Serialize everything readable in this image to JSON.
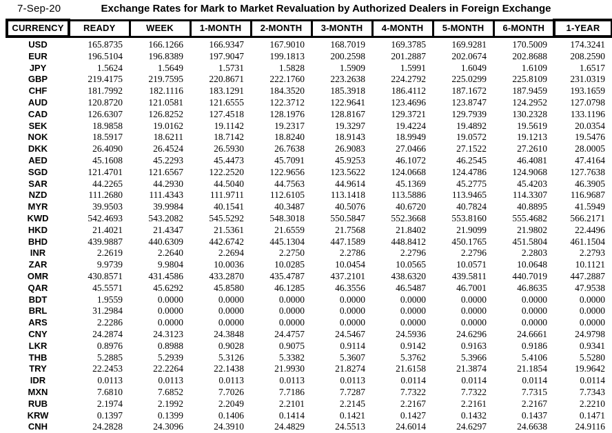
{
  "header": {
    "date": "7-Sep-20",
    "title": "Exchange Rates for Mark to Market Revaluation by Authorized Dealers in Foreign Exchange"
  },
  "colors": {
    "text": "#000000",
    "background": "#ffffff",
    "border": "#000000"
  },
  "table": {
    "columns": [
      "CURRENCY",
      "READY",
      "WEEK",
      "1-MONTH",
      "2-MONTH",
      "3-MONTH",
      "4-MONTH",
      "5-MONTH",
      "6-MONTH",
      "1-YEAR"
    ],
    "rows": [
      {
        "currency": "USD",
        "values": [
          "165.8735",
          "166.1266",
          "166.9347",
          "167.9010",
          "168.7019",
          "169.3785",
          "169.9281",
          "170.5009",
          "174.3241"
        ]
      },
      {
        "currency": "EUR",
        "values": [
          "196.5104",
          "196.8389",
          "197.9047",
          "199.1813",
          "200.2598",
          "201.2887",
          "202.0674",
          "202.8688",
          "208.2590"
        ]
      },
      {
        "currency": "JPY",
        "values": [
          "1.5624",
          "1.5649",
          "1.5731",
          "1.5828",
          "1.5909",
          "1.5991",
          "1.6049",
          "1.6109",
          "1.6517"
        ]
      },
      {
        "currency": "GBP",
        "values": [
          "219.4175",
          "219.7595",
          "220.8671",
          "222.1760",
          "223.2638",
          "224.2792",
          "225.0299",
          "225.8109",
          "231.0319"
        ]
      },
      {
        "currency": "CHF",
        "values": [
          "181.7992",
          "182.1116",
          "183.1291",
          "184.3520",
          "185.3918",
          "186.4112",
          "187.1672",
          "187.9459",
          "193.1659"
        ]
      },
      {
        "currency": "AUD",
        "values": [
          "120.8720",
          "121.0581",
          "121.6555",
          "122.3712",
          "122.9641",
          "123.4696",
          "123.8747",
          "124.2952",
          "127.0798"
        ]
      },
      {
        "currency": "CAD",
        "values": [
          "126.6307",
          "126.8252",
          "127.4518",
          "128.1976",
          "128.8167",
          "129.3721",
          "129.7939",
          "130.2328",
          "133.1196"
        ]
      },
      {
        "currency": "SEK",
        "values": [
          "18.9858",
          "19.0162",
          "19.1142",
          "19.2317",
          "19.3297",
          "19.4224",
          "19.4892",
          "19.5619",
          "20.0354"
        ]
      },
      {
        "currency": "NOK",
        "values": [
          "18.5917",
          "18.6211",
          "18.7142",
          "18.8240",
          "18.9143",
          "18.9949",
          "19.0572",
          "19.1213",
          "19.5476"
        ]
      },
      {
        "currency": "DKK",
        "values": [
          "26.4090",
          "26.4524",
          "26.5930",
          "26.7638",
          "26.9083",
          "27.0466",
          "27.1522",
          "27.2610",
          "28.0005"
        ]
      },
      {
        "currency": "AED",
        "values": [
          "45.1608",
          "45.2293",
          "45.4473",
          "45.7091",
          "45.9253",
          "46.1072",
          "46.2545",
          "46.4081",
          "47.4164"
        ]
      },
      {
        "currency": "SGD",
        "values": [
          "121.4701",
          "121.6567",
          "122.2520",
          "122.9656",
          "123.5622",
          "124.0668",
          "124.4786",
          "124.9068",
          "127.7638"
        ]
      },
      {
        "currency": "SAR",
        "values": [
          "44.2265",
          "44.2930",
          "44.5040",
          "44.7563",
          "44.9614",
          "45.1369",
          "45.2775",
          "45.4203",
          "46.3905"
        ]
      },
      {
        "currency": "NZD",
        "values": [
          "111.2680",
          "111.4343",
          "111.9711",
          "112.6105",
          "113.1418",
          "113.5886",
          "113.9465",
          "114.3307",
          "116.9687"
        ]
      },
      {
        "currency": "MYR",
        "values": [
          "39.9503",
          "39.9984",
          "40.1541",
          "40.3487",
          "40.5076",
          "40.6720",
          "40.7824",
          "40.8895",
          "41.5949"
        ]
      },
      {
        "currency": "KWD",
        "values": [
          "542.4693",
          "543.2082",
          "545.5292",
          "548.3018",
          "550.5847",
          "552.3668",
          "553.8160",
          "555.4682",
          "566.2171"
        ]
      },
      {
        "currency": "HKD",
        "values": [
          "21.4021",
          "21.4347",
          "21.5361",
          "21.6559",
          "21.7568",
          "21.8402",
          "21.9099",
          "21.9802",
          "22.4496"
        ]
      },
      {
        "currency": "BHD",
        "values": [
          "439.9887",
          "440.6309",
          "442.6742",
          "445.1304",
          "447.1589",
          "448.8412",
          "450.1765",
          "451.5804",
          "461.1504"
        ]
      },
      {
        "currency": "INR",
        "values": [
          "2.2619",
          "2.2640",
          "2.2694",
          "2.2750",
          "2.2786",
          "2.2796",
          "2.2796",
          "2.2803",
          "2.2793"
        ]
      },
      {
        "currency": "ZAR",
        "values": [
          "9.9739",
          "9.9804",
          "10.0036",
          "10.0285",
          "10.0454",
          "10.0565",
          "10.0571",
          "10.0648",
          "10.1121"
        ]
      },
      {
        "currency": "OMR",
        "values": [
          "430.8571",
          "431.4586",
          "433.2870",
          "435.4787",
          "437.2101",
          "438.6320",
          "439.5811",
          "440.7019",
          "447.2887"
        ]
      },
      {
        "currency": "QAR",
        "values": [
          "45.5571",
          "45.6292",
          "45.8580",
          "46.1285",
          "46.3556",
          "46.5487",
          "46.7001",
          "46.8635",
          "47.9538"
        ]
      },
      {
        "currency": "BDT",
        "values": [
          "1.9559",
          "0.0000",
          "0.0000",
          "0.0000",
          "0.0000",
          "0.0000",
          "0.0000",
          "0.0000",
          "0.0000"
        ]
      },
      {
        "currency": "BRL",
        "values": [
          "31.2984",
          "0.0000",
          "0.0000",
          "0.0000",
          "0.0000",
          "0.0000",
          "0.0000",
          "0.0000",
          "0.0000"
        ]
      },
      {
        "currency": "ARS",
        "values": [
          "2.2286",
          "0.0000",
          "0.0000",
          "0.0000",
          "0.0000",
          "0.0000",
          "0.0000",
          "0.0000",
          "0.0000"
        ]
      },
      {
        "currency": "CNY",
        "values": [
          "24.2874",
          "24.3123",
          "24.3848",
          "24.4757",
          "24.5467",
          "24.5936",
          "24.6296",
          "24.6661",
          "24.9798"
        ]
      },
      {
        "currency": "LKR",
        "values": [
          "0.8976",
          "0.8988",
          "0.9028",
          "0.9075",
          "0.9114",
          "0.9142",
          "0.9163",
          "0.9186",
          "0.9341"
        ]
      },
      {
        "currency": "THB",
        "values": [
          "5.2885",
          "5.2939",
          "5.3126",
          "5.3382",
          "5.3607",
          "5.3762",
          "5.3966",
          "5.4106",
          "5.5280"
        ]
      },
      {
        "currency": "TRY",
        "values": [
          "22.2453",
          "22.2264",
          "22.1438",
          "21.9930",
          "21.8274",
          "21.6158",
          "21.3874",
          "21.1854",
          "19.9642"
        ]
      },
      {
        "currency": "IDR",
        "values": [
          "0.0113",
          "0.0113",
          "0.0113",
          "0.0113",
          "0.0113",
          "0.0114",
          "0.0114",
          "0.0114",
          "0.0114"
        ]
      },
      {
        "currency": "MXN",
        "values": [
          "7.6810",
          "7.6852",
          "7.7026",
          "7.7186",
          "7.7287",
          "7.7322",
          "7.7322",
          "7.7315",
          "7.7343"
        ]
      },
      {
        "currency": "RUB",
        "values": [
          "2.1974",
          "2.1992",
          "2.2049",
          "2.2101",
          "2.2145",
          "2.2167",
          "2.2161",
          "2.2167",
          "2.2210"
        ]
      },
      {
        "currency": "KRW",
        "values": [
          "0.1397",
          "0.1399",
          "0.1406",
          "0.1414",
          "0.1421",
          "0.1427",
          "0.1432",
          "0.1437",
          "0.1471"
        ]
      },
      {
        "currency": "CNH",
        "values": [
          "24.2828",
          "24.3096",
          "24.3910",
          "24.4829",
          "24.5513",
          "24.6014",
          "24.6297",
          "24.6638",
          "24.9116"
        ]
      }
    ]
  }
}
